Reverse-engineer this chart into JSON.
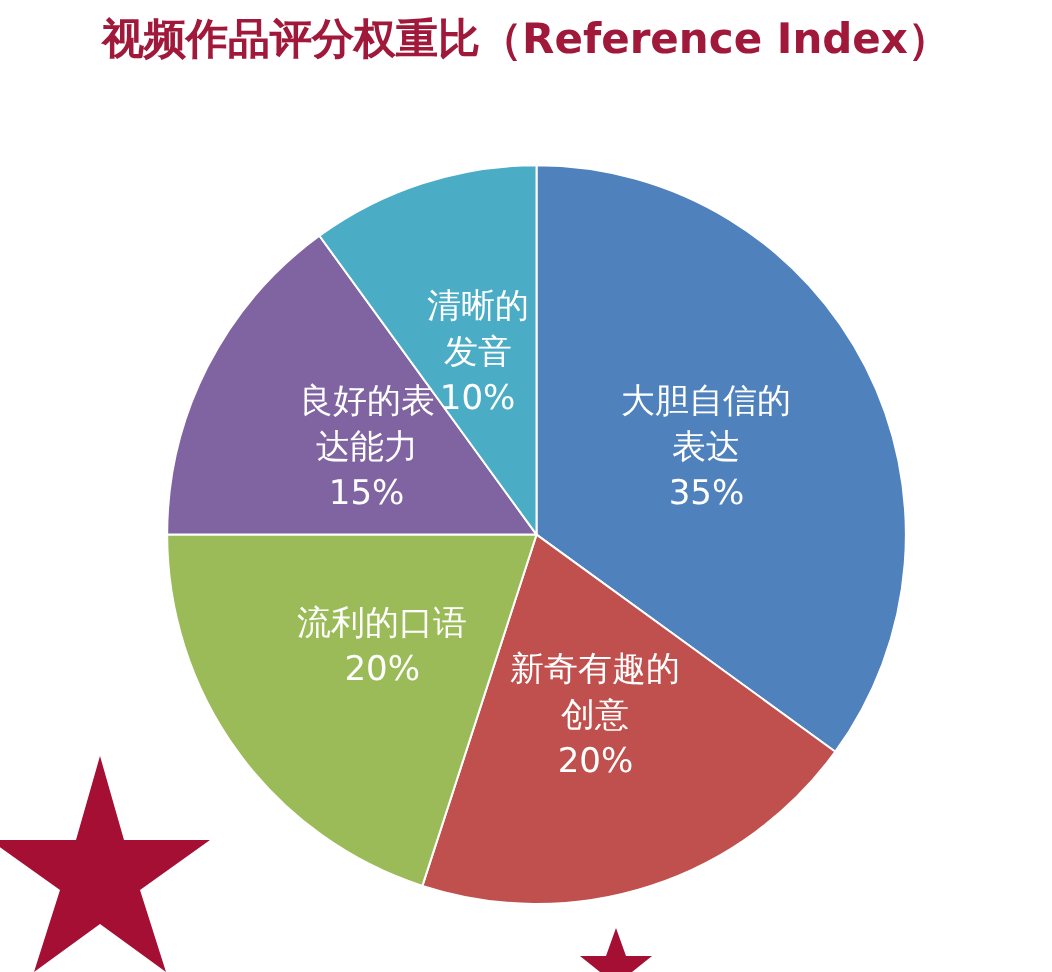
{
  "chart_data": {
    "type": "pie",
    "title": "视频作品评分权重比（Reference Index）",
    "categories": [
      "大胆自信的表达",
      "新奇有趣的创意",
      "流利的口语",
      "良好的表达能力",
      "清晰的发音"
    ],
    "values": [
      35,
      20,
      20,
      15,
      10
    ],
    "colors": [
      "#4f81bd",
      "#c0504d",
      "#9bbb59",
      "#8064a2",
      "#4bacc6"
    ],
    "value_labels": [
      "35%",
      "20%",
      "20%",
      "15%",
      "10%"
    ],
    "legend": false
  }
}
